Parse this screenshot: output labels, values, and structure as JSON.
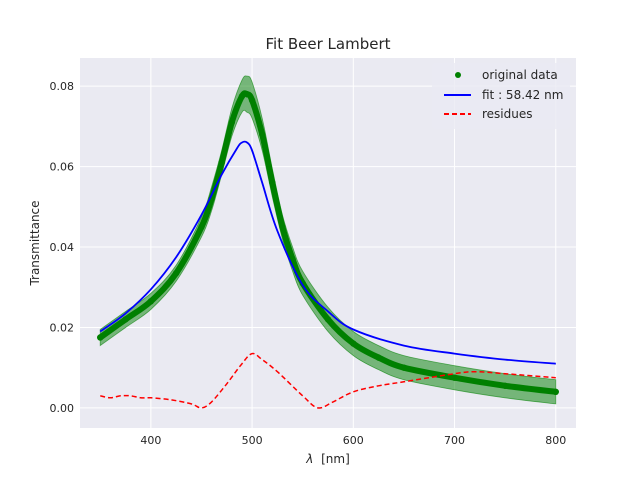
{
  "chart_data": {
    "type": "line",
    "title": "Fit Beer Lambert",
    "xlabel_symbol": "λ",
    "xlabel_unit": "[nm]",
    "ylabel": "Transmittance",
    "xlim": [
      330,
      820
    ],
    "ylim": [
      -0.005,
      0.087
    ],
    "xticks": [
      400,
      500,
      600,
      700,
      800
    ],
    "yticks": [
      0.0,
      0.02,
      0.04,
      0.06,
      0.08
    ],
    "xtick_labels": [
      "400",
      "500",
      "600",
      "700",
      "800"
    ],
    "ytick_labels": [
      "0.00",
      "0.02",
      "0.04",
      "0.06",
      "0.08"
    ],
    "grid": true,
    "legend_position": "top-right",
    "series": [
      {
        "name": "original data",
        "style": "points",
        "color": "#008000",
        "x": [
          350,
          375,
          400,
          425,
          450,
          460,
          470,
          480,
          490,
          495,
          500,
          510,
          520,
          530,
          540,
          550,
          575,
          600,
          625,
          650,
          700,
          750,
          800
        ],
        "y": [
          0.0175,
          0.022,
          0.0265,
          0.0335,
          0.045,
          0.052,
          0.061,
          0.071,
          0.0775,
          0.078,
          0.0765,
          0.068,
          0.056,
          0.045,
          0.037,
          0.031,
          0.022,
          0.016,
          0.0125,
          0.01,
          0.0075,
          0.0055,
          0.004
        ],
        "band_halfwidth": [
          0.002,
          0.002,
          0.002,
          0.002,
          0.0025,
          0.003,
          0.003,
          0.0035,
          0.004,
          0.0045,
          0.0045,
          0.004,
          0.0035,
          0.003,
          0.003,
          0.003,
          0.003,
          0.003,
          0.003,
          0.003,
          0.003,
          0.003,
          0.003
        ]
      },
      {
        "name": "fit : 58.42 nm",
        "style": "line",
        "color": "#0000ff",
        "x": [
          350,
          375,
          400,
          425,
          450,
          470,
          485,
          490,
          495,
          500,
          510,
          525,
          550,
          575,
          600,
          650,
          700,
          750,
          800
        ],
        "y": [
          0.019,
          0.0235,
          0.0295,
          0.0375,
          0.048,
          0.058,
          0.0645,
          0.066,
          0.066,
          0.064,
          0.056,
          0.044,
          0.0305,
          0.024,
          0.0195,
          0.0155,
          0.0135,
          0.012,
          0.011
        ]
      },
      {
        "name": "residues",
        "style": "dashed",
        "color": "#ff0000",
        "x": [
          350,
          360,
          370,
          380,
          390,
          400,
          420,
          440,
          450,
          460,
          475,
          490,
          500,
          510,
          525,
          550,
          565,
          580,
          600,
          625,
          650,
          700,
          720,
          750,
          800
        ],
        "y": [
          0.003,
          0.0025,
          0.003,
          0.003,
          0.0025,
          0.0025,
          0.002,
          0.001,
          0.0,
          0.0015,
          0.006,
          0.011,
          0.0135,
          0.012,
          0.009,
          0.003,
          0.0,
          0.0015,
          0.004,
          0.0055,
          0.0065,
          0.0085,
          0.009,
          0.0085,
          0.0075
        ]
      }
    ]
  }
}
